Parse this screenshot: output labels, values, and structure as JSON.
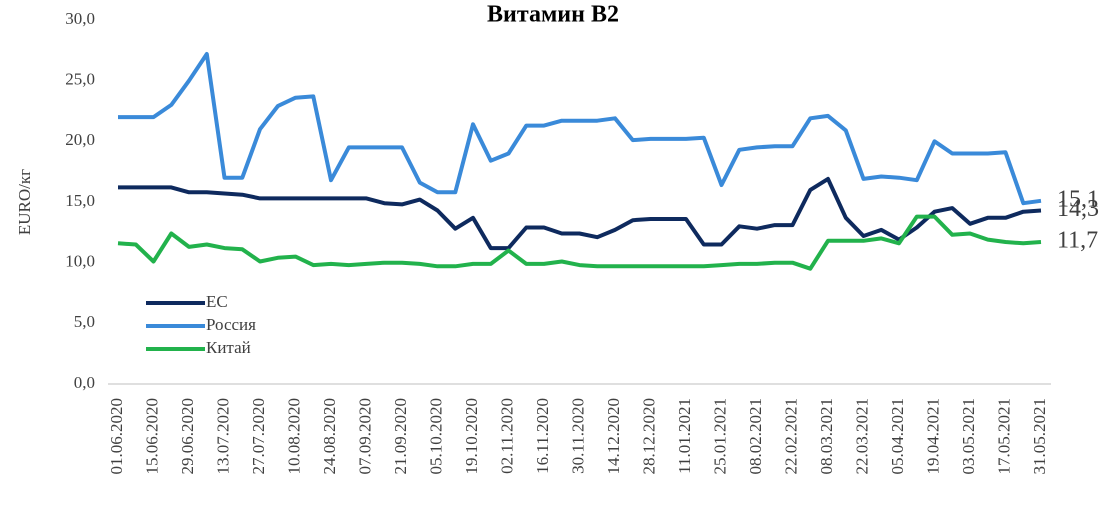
{
  "chart_data": {
    "type": "line",
    "title": "Витамин B2",
    "y_label": "EURO/кг",
    "categories": [
      "01.06.2020",
      null,
      "15.06.2020",
      null,
      "29.06.2020",
      null,
      "13.07.2020",
      null,
      "27.07.2020",
      null,
      "10.08.2020",
      null,
      "24.08.2020",
      null,
      "07.09.2020",
      null,
      "21.09.2020",
      null,
      "05.10.2020",
      null,
      "19.10.2020",
      null,
      "02.11.2020",
      null,
      "16.11.2020",
      null,
      "30.11.2020",
      null,
      "14.12.2020",
      null,
      "28.12.2020",
      null,
      "11.01.2021",
      null,
      "25.01.2021",
      null,
      "08.02.2021",
      null,
      "22.02.2021",
      null,
      "08.03.2021",
      null,
      "22.03.2021",
      null,
      "05.04.2021",
      null,
      "19.04.2021",
      null,
      "03.05.2021",
      null,
      "17.05.2021",
      null,
      "31.05.2021"
    ],
    "series": [
      {
        "name": "ЕС",
        "color": "#0e2a5e",
        "values": [
          16.2,
          16.2,
          16.2,
          16.2,
          15.8,
          15.8,
          15.7,
          15.6,
          15.3,
          15.3,
          15.3,
          15.3,
          15.3,
          15.3,
          15.3,
          14.9,
          14.8,
          15.2,
          14.3,
          12.8,
          13.7,
          11.2,
          11.2,
          12.9,
          12.9,
          12.4,
          12.4,
          12.1,
          12.7,
          13.5,
          13.6,
          13.6,
          13.6,
          11.5,
          11.5,
          13.0,
          12.8,
          13.1,
          13.1,
          16.0,
          16.9,
          13.7,
          12.2,
          12.7,
          11.9,
          12.9,
          14.2,
          14.5,
          13.2,
          13.7,
          13.7,
          14.2,
          14.3
        ],
        "value_labels": [
          null,
          null,
          null,
          null,
          null,
          null,
          null,
          null,
          null,
          null,
          null,
          null,
          null,
          null,
          null,
          null,
          null,
          null,
          null,
          null,
          null,
          null,
          null,
          null,
          null,
          null,
          null,
          null,
          null,
          null,
          null,
          null,
          null,
          null,
          null,
          null,
          null,
          null,
          null,
          null,
          null,
          null,
          null,
          null,
          null,
          null,
          null,
          null,
          null,
          null,
          null,
          null,
          "14,3"
        ]
      },
      {
        "name": "Россия",
        "color": "#3a8ad9",
        "values": [
          22.0,
          22.0,
          22.0,
          23.0,
          25.0,
          27.2,
          17.0,
          17.0,
          21.0,
          22.9,
          23.6,
          23.7,
          16.8,
          19.5,
          19.5,
          19.5,
          19.5,
          16.6,
          15.8,
          15.8,
          21.4,
          18.4,
          19.0,
          21.3,
          21.3,
          21.7,
          21.7,
          21.7,
          21.9,
          20.1,
          20.2,
          20.2,
          20.2,
          20.3,
          16.4,
          19.3,
          19.5,
          19.6,
          19.6,
          21.9,
          22.1,
          20.9,
          16.9,
          17.1,
          17.0,
          16.8,
          20.0,
          19.0,
          19.0,
          19.0,
          19.1,
          14.9,
          15.1
        ],
        "value_labels": [
          null,
          null,
          null,
          null,
          null,
          null,
          null,
          null,
          null,
          null,
          null,
          null,
          null,
          null,
          null,
          null,
          null,
          null,
          null,
          null,
          null,
          null,
          null,
          null,
          null,
          null,
          null,
          null,
          null,
          null,
          null,
          null,
          null,
          null,
          null,
          null,
          null,
          null,
          null,
          null,
          null,
          null,
          null,
          null,
          null,
          null,
          null,
          null,
          null,
          null,
          null,
          null,
          "15,1"
        ]
      },
      {
        "name": "Китай",
        "color": "#22b24c",
        "values": [
          11.6,
          11.5,
          10.1,
          12.4,
          11.3,
          11.5,
          11.2,
          11.1,
          10.1,
          10.4,
          10.5,
          9.8,
          9.9,
          9.8,
          9.9,
          10.0,
          10.0,
          9.9,
          9.7,
          9.7,
          9.9,
          9.9,
          11.0,
          9.9,
          9.9,
          10.1,
          9.8,
          9.7,
          9.7,
          9.7,
          9.7,
          9.7,
          9.7,
          9.7,
          9.8,
          9.9,
          9.9,
          10.0,
          10.0,
          9.5,
          11.8,
          11.8,
          11.8,
          12.0,
          11.6,
          13.8,
          13.8,
          12.3,
          12.4,
          11.9,
          11.7,
          11.6,
          11.7
        ],
        "value_labels": [
          null,
          null,
          null,
          null,
          null,
          null,
          null,
          null,
          null,
          null,
          null,
          null,
          null,
          null,
          null,
          null,
          null,
          null,
          null,
          null,
          null,
          null,
          null,
          null,
          null,
          null,
          null,
          null,
          null,
          null,
          null,
          null,
          null,
          null,
          null,
          null,
          null,
          null,
          null,
          null,
          null,
          null,
          null,
          null,
          null,
          null,
          null,
          null,
          null,
          null,
          null,
          null,
          "11,7"
        ]
      }
    ],
    "ylim": [
      0,
      30
    ],
    "yticks": [
      {
        "value": 0,
        "label": "0,0"
      },
      {
        "value": 5,
        "label": "5,0"
      },
      {
        "value": 10,
        "label": "10,0"
      },
      {
        "value": 15,
        "label": "15,0"
      },
      {
        "value": 20,
        "label": "20,0"
      },
      {
        "value": 25,
        "label": "25,0"
      },
      {
        "value": 30,
        "label": "30,0"
      }
    ],
    "grid": false,
    "legend": "lower left"
  }
}
